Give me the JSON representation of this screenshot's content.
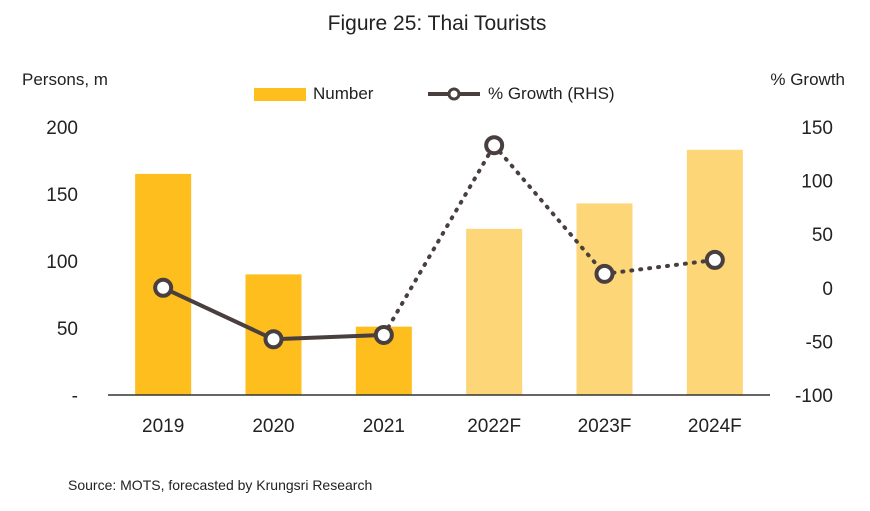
{
  "chart_data": {
    "type": "bar",
    "title": "Figure 25: Thai Tourists",
    "categories": [
      "2019",
      "2020",
      "2021",
      "2022F",
      "2023F",
      "2024F"
    ],
    "forecast_flags": [
      false,
      false,
      false,
      true,
      true,
      true
    ],
    "series": [
      {
        "name": "Number",
        "type": "bar",
        "axis": "left",
        "values": [
          165,
          90,
          51,
          124,
          143,
          183
        ]
      },
      {
        "name": "% Growth (RHS)",
        "type": "line",
        "axis": "right",
        "values": [
          0,
          -48,
          -44,
          133,
          13,
          26
        ]
      }
    ],
    "ylabel_left": "Persons, m",
    "ylabel_right": "% Growth",
    "ylim_left": [
      0,
      200
    ],
    "ylim_right": [
      -100,
      150
    ],
    "yticks_left": [
      {
        "value": 0,
        "label": "-"
      },
      {
        "value": 50,
        "label": "50"
      },
      {
        "value": 100,
        "label": "100"
      },
      {
        "value": 150,
        "label": "150"
      },
      {
        "value": 200,
        "label": "200"
      }
    ],
    "yticks_right": [
      {
        "value": -100,
        "label": "-100"
      },
      {
        "value": -50,
        "label": "-50"
      },
      {
        "value": 0,
        "label": "0"
      },
      {
        "value": 50,
        "label": "50"
      },
      {
        "value": 100,
        "label": "100"
      },
      {
        "value": 150,
        "label": "150"
      }
    ],
    "grid": false,
    "legend": "top-center",
    "source": "Source: MOTS, forecasted by Krungsri Research",
    "colors": {
      "bar_actual": "#FDBE1E",
      "bar_forecast": "#FDD678",
      "line": "#4A3F3F",
      "marker_fill": "#FFFFFF",
      "axis": "#333333",
      "text": "#222222"
    }
  }
}
